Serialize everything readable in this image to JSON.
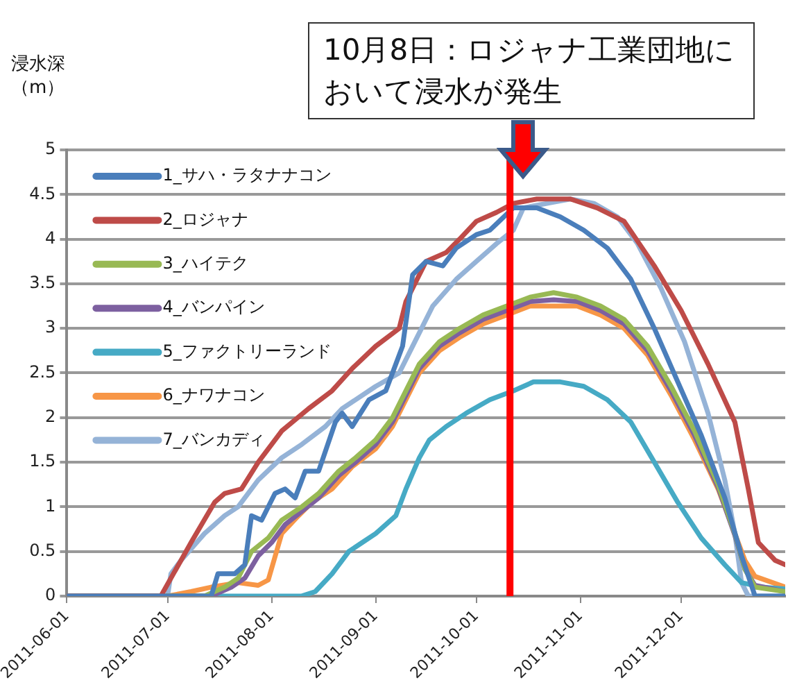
{
  "chart_data": {
    "type": "line",
    "ylabel": "浸水深（m）",
    "xlim": [
      "2011-06-01",
      "2012-01-01"
    ],
    "xticks": [
      "2011-06-01",
      "2011-07-01",
      "2011-08-01",
      "2011-09-01",
      "2011-10-01",
      "2011-11-01",
      "2011-12-01"
    ],
    "ylim": [
      0,
      5
    ],
    "yticks": [
      0,
      0.5,
      1,
      1.5,
      2,
      2.5,
      3,
      3.5,
      4,
      4.5,
      5
    ],
    "grid": "y",
    "legend": "top left",
    "marker": "none",
    "line_style": "solid",
    "ref_lines": [
      {
        "axis": "x",
        "value": "2011-10-11",
        "label": "10月8日：ロジャナ工業団地において浸水が発生",
        "color": "#ff0000"
      }
    ],
    "series": [
      {
        "name": "1_サハ・ラタナナコン",
        "color": "#4a7ebb",
        "x": [
          "2011-06-01",
          "2011-07-14",
          "2011-07-16",
          "2011-07-21",
          "2011-07-24",
          "2011-07-26",
          "2011-07-29",
          "2011-08-02",
          "2011-08-05",
          "2011-08-08",
          "2011-08-11",
          "2011-08-15",
          "2011-08-20",
          "2011-08-22",
          "2011-08-25",
          "2011-08-30",
          "2011-09-04",
          "2011-09-09",
          "2011-09-12",
          "2011-09-16",
          "2011-09-21",
          "2011-09-25",
          "2011-10-01",
          "2011-10-05",
          "2011-10-12",
          "2011-10-19",
          "2011-10-26",
          "2011-11-02",
          "2011-11-09",
          "2011-11-16",
          "2011-11-23",
          "2011-11-30",
          "2011-12-07",
          "2011-12-14",
          "2011-12-19",
          "2011-12-23",
          "2012-01-01"
        ],
        "values": [
          0,
          0,
          0.25,
          0.25,
          0.35,
          0.9,
          0.85,
          1.15,
          1.2,
          1.1,
          1.4,
          1.4,
          1.95,
          2.05,
          1.9,
          2.2,
          2.3,
          2.8,
          3.6,
          3.75,
          3.7,
          3.9,
          4.05,
          4.1,
          4.35,
          4.35,
          4.25,
          4.1,
          3.9,
          3.55,
          3,
          2.4,
          1.8,
          1.1,
          0.45,
          0,
          0
        ]
      },
      {
        "name": "2_ロジャナ",
        "color": "#be4b48",
        "x": [
          "2011-06-01",
          "2011-06-29",
          "2011-07-08",
          "2011-07-15",
          "2011-07-18",
          "2011-07-23",
          "2011-07-28",
          "2011-08-04",
          "2011-08-12",
          "2011-08-19",
          "2011-08-25",
          "2011-09-01",
          "2011-09-08",
          "2011-09-10",
          "2011-09-16",
          "2011-09-22",
          "2011-09-26",
          "2011-10-01",
          "2011-10-07",
          "2011-10-12",
          "2011-10-19",
          "2011-10-29",
          "2011-11-06",
          "2011-11-14",
          "2011-11-23",
          "2011-12-01",
          "2011-12-09",
          "2011-12-17",
          "2011-12-21",
          "2011-12-24",
          "2011-12-29",
          "2012-01-01"
        ],
        "values": [
          0,
          0,
          0.6,
          1.05,
          1.15,
          1.2,
          1.5,
          1.85,
          2.1,
          2.3,
          2.55,
          2.8,
          3,
          3.3,
          3.75,
          3.85,
          4,
          4.2,
          4.3,
          4.4,
          4.45,
          4.45,
          4.35,
          4.2,
          3.7,
          3.2,
          2.6,
          1.95,
          1.2,
          0.6,
          0.4,
          0.35
        ]
      },
      {
        "name": "3_ハイテク",
        "color": "#98b954",
        "x": [
          "2011-06-01",
          "2011-07-12",
          "2011-07-18",
          "2011-07-22",
          "2011-07-26",
          "2011-07-31",
          "2011-08-04",
          "2011-08-10",
          "2011-08-15",
          "2011-08-21",
          "2011-08-26",
          "2011-09-01",
          "2011-09-06",
          "2011-09-10",
          "2011-09-14",
          "2011-09-20",
          "2011-09-26",
          "2011-10-03",
          "2011-10-10",
          "2011-10-17",
          "2011-10-24",
          "2011-10-31",
          "2011-11-07",
          "2011-11-14",
          "2011-11-21",
          "2011-11-28",
          "2011-12-05",
          "2011-12-12",
          "2011-12-17",
          "2011-12-20",
          "2011-12-23",
          "2012-01-01"
        ],
        "values": [
          0,
          0,
          0.1,
          0.2,
          0.5,
          0.65,
          0.85,
          1,
          1.15,
          1.4,
          1.55,
          1.75,
          2,
          2.3,
          2.6,
          2.85,
          3,
          3.15,
          3.25,
          3.35,
          3.4,
          3.35,
          3.25,
          3.1,
          2.8,
          2.35,
          1.85,
          1.25,
          0.7,
          0.3,
          0.1,
          0.05
        ]
      },
      {
        "name": "4_バンパイン",
        "color": "#7d60a0",
        "x": [
          "2011-06-01",
          "2011-07-14",
          "2011-07-20",
          "2011-07-24",
          "2011-07-28",
          "2011-08-01",
          "2011-08-05",
          "2011-08-10",
          "2011-08-15",
          "2011-08-21",
          "2011-08-26",
          "2011-09-01",
          "2011-09-06",
          "2011-09-10",
          "2011-09-14",
          "2011-09-20",
          "2011-09-26",
          "2011-10-03",
          "2011-10-10",
          "2011-10-17",
          "2011-10-24",
          "2011-10-31",
          "2011-11-07",
          "2011-11-14",
          "2011-11-21",
          "2011-11-28",
          "2011-12-05",
          "2011-12-12",
          "2011-12-17",
          "2011-12-20",
          "2011-12-23",
          "2012-01-01"
        ],
        "values": [
          0,
          0,
          0.1,
          0.2,
          0.45,
          0.6,
          0.8,
          0.95,
          1.1,
          1.35,
          1.5,
          1.7,
          1.95,
          2.25,
          2.55,
          2.8,
          2.95,
          3.1,
          3.2,
          3.3,
          3.32,
          3.3,
          3.2,
          3.05,
          2.75,
          2.3,
          1.8,
          1.22,
          0.68,
          0.3,
          0.12,
          0.05
        ]
      },
      {
        "name": "5_ファクトリーランド",
        "color": "#46aac5",
        "x": [
          "2011-06-01",
          "2011-08-10",
          "2011-08-14",
          "2011-08-19",
          "2011-08-24",
          "2011-08-28",
          "2011-09-01",
          "2011-09-07",
          "2011-09-10",
          "2011-09-14",
          "2011-09-17",
          "2011-09-22",
          "2011-09-28",
          "2011-10-05",
          "2011-10-12",
          "2011-10-18",
          "2011-10-26",
          "2011-11-02",
          "2011-11-09",
          "2011-11-16",
          "2011-11-23",
          "2011-11-30",
          "2011-12-07",
          "2011-12-14",
          "2011-12-19",
          "2011-12-25",
          "2012-01-01"
        ],
        "values": [
          0,
          0,
          0.05,
          0.25,
          0.5,
          0.6,
          0.7,
          0.9,
          1.2,
          1.55,
          1.75,
          1.9,
          2.05,
          2.2,
          2.3,
          2.4,
          2.4,
          2.35,
          2.2,
          1.95,
          1.5,
          1.05,
          0.65,
          0.35,
          0.15,
          0.1,
          0.08
        ]
      },
      {
        "name": "6_ナワナコン",
        "color": "#f79646",
        "x": [
          "2011-06-01",
          "2011-07-01",
          "2011-07-08",
          "2011-07-14",
          "2011-07-22",
          "2011-07-28",
          "2011-07-31",
          "2011-08-04",
          "2011-08-09",
          "2011-08-13",
          "2011-08-19",
          "2011-08-25",
          "2011-09-01",
          "2011-09-06",
          "2011-09-10",
          "2011-09-14",
          "2011-09-20",
          "2011-09-26",
          "2011-10-03",
          "2011-10-10",
          "2011-10-17",
          "2011-10-24",
          "2011-10-31",
          "2011-11-07",
          "2011-11-14",
          "2011-11-21",
          "2011-11-28",
          "2011-12-05",
          "2011-12-12",
          "2011-12-17",
          "2011-12-20",
          "2011-12-23",
          "2012-01-01"
        ],
        "values": [
          0,
          0,
          0.05,
          0.1,
          0.15,
          0.12,
          0.18,
          0.7,
          0.9,
          1.05,
          1.2,
          1.45,
          1.65,
          1.9,
          2.2,
          2.5,
          2.75,
          2.9,
          3.05,
          3.15,
          3.25,
          3.25,
          3.25,
          3.15,
          3,
          2.7,
          2.25,
          1.75,
          1.2,
          0.7,
          0.4,
          0.22,
          0.1
        ]
      },
      {
        "name": "7_バンカディ",
        "color": "#95b3d7",
        "x": [
          "2011-06-01",
          "2011-07-01",
          "2011-07-02",
          "2011-07-05",
          "2011-07-12",
          "2011-07-18",
          "2011-07-22",
          "2011-07-28",
          "2011-08-04",
          "2011-08-10",
          "2011-08-17",
          "2011-08-22",
          "2011-09-01",
          "2011-09-08",
          "2011-09-12",
          "2011-09-18",
          "2011-09-25",
          "2011-10-01",
          "2011-10-07",
          "2011-10-12",
          "2011-10-15",
          "2011-10-22",
          "2011-10-29",
          "2011-11-05",
          "2011-11-12",
          "2011-11-18",
          "2011-11-25",
          "2011-12-02",
          "2011-12-09",
          "2011-12-14",
          "2011-12-17",
          "2011-12-19",
          "2011-12-21",
          "2012-01-01"
        ],
        "values": [
          0,
          0,
          0.25,
          0.4,
          0.7,
          0.9,
          1,
          1.3,
          1.55,
          1.7,
          1.9,
          2.1,
          2.35,
          2.5,
          2.8,
          3.25,
          3.55,
          3.75,
          3.95,
          4.1,
          4.35,
          4.4,
          4.45,
          4.4,
          4.25,
          3.95,
          3.45,
          2.85,
          2.05,
          1.3,
          0.7,
          0.15,
          0,
          0
        ]
      }
    ]
  }
}
